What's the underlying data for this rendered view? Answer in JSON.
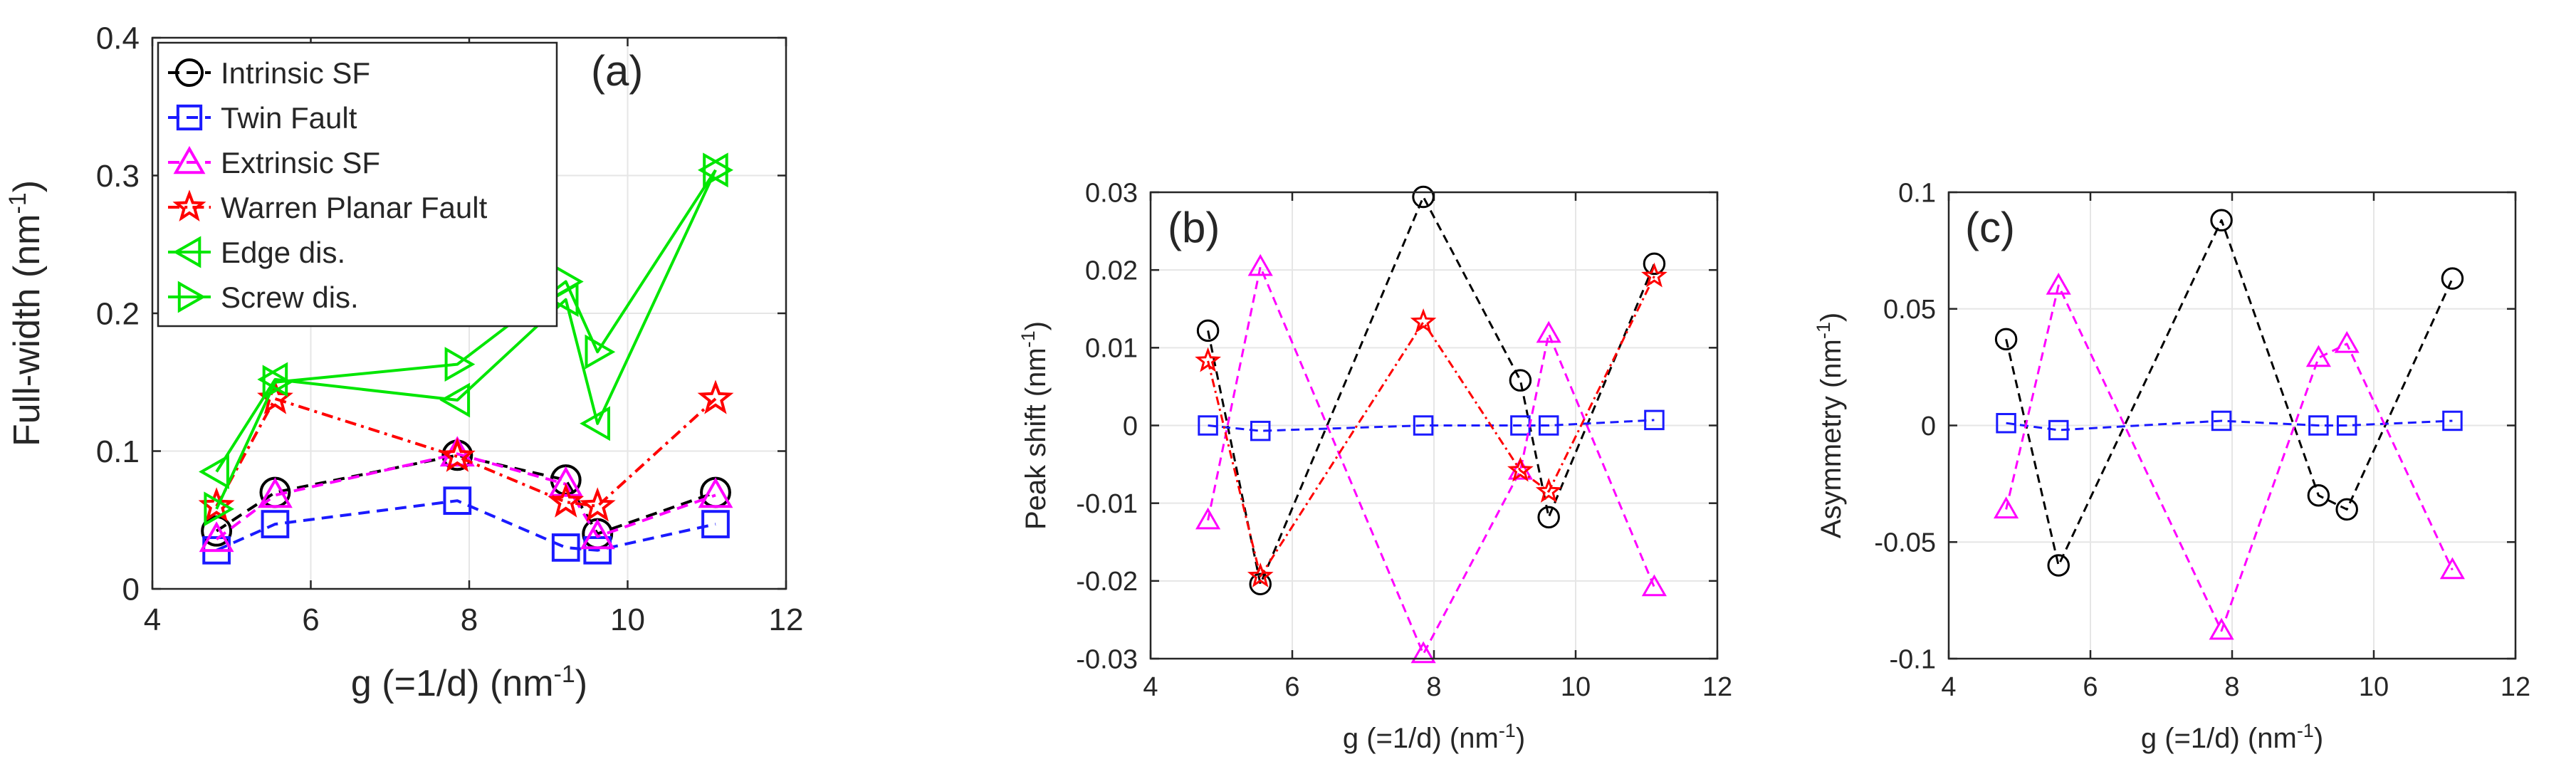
{
  "chart_data": [
    {
      "id": "a",
      "type": "line",
      "panel_label": "(a)",
      "xlabel": "g (=1/d) (nm",
      "xlabel_sup": "-1",
      "xlabel_end": ")",
      "ylabel": "Full-width (nm",
      "ylabel_sup": "-1",
      "ylabel_end": ")",
      "xlim": [
        4,
        12
      ],
      "ylim": [
        0,
        0.4
      ],
      "xticks": [
        4,
        6,
        8,
        10,
        12
      ],
      "yticks": [
        0,
        0.1,
        0.2,
        0.3,
        0.4
      ],
      "xtick_labels": [
        "4",
        "6",
        "8",
        "10",
        "12"
      ],
      "ytick_labels": [
        "0",
        "0.1",
        "0.2",
        "0.3",
        "0.4"
      ],
      "grid": true,
      "legend_position": "top-left",
      "series": [
        {
          "name": "Intrinsic SF",
          "color": "#000000",
          "dash": "dashed",
          "marker": "circle",
          "x": [
            4.81,
            5.55,
            7.85,
            9.22,
            9.62,
            11.11
          ],
          "y": [
            0.042,
            0.07,
            0.097,
            0.079,
            0.04,
            0.07
          ]
        },
        {
          "name": "Twin Fault",
          "color": "#1a1aff",
          "dash": "dashed",
          "marker": "square",
          "x": [
            4.81,
            5.55,
            7.85,
            9.22,
            9.62,
            11.11
          ],
          "y": [
            0.028,
            0.047,
            0.064,
            0.03,
            0.028,
            0.047
          ]
        },
        {
          "name": "Extrinsic SF",
          "color": "#ff00ff",
          "dash": "dashed",
          "marker": "triangle-up",
          "x": [
            4.81,
            5.55,
            7.85,
            9.22,
            9.62,
            11.11
          ],
          "y": [
            0.036,
            0.068,
            0.098,
            0.076,
            0.038,
            0.068
          ]
        },
        {
          "name": "Warren Planar Fault",
          "color": "#ff0000",
          "dash": "dashdot",
          "marker": "star",
          "x": [
            4.81,
            5.55,
            7.85,
            9.22,
            9.62,
            11.11
          ],
          "y": [
            0.06,
            0.138,
            0.096,
            0.063,
            0.06,
            0.138
          ]
        },
        {
          "name": "Edge dis.",
          "color": "#00e600",
          "dash": "solid",
          "marker": "triangle-left",
          "x": [
            4.81,
            5.55,
            7.85,
            9.22,
            9.62,
            11.11
          ],
          "y": [
            0.085,
            0.152,
            0.137,
            0.21,
            0.12,
            0.304
          ]
        },
        {
          "name": "Screw dis.",
          "color": "#00e600",
          "dash": "solid",
          "marker": "triangle-right",
          "x": [
            4.81,
            5.55,
            7.85,
            9.22,
            9.62,
            11.11
          ],
          "y": [
            0.058,
            0.15,
            0.163,
            0.223,
            0.172,
            0.304
          ]
        }
      ]
    },
    {
      "id": "b",
      "type": "line",
      "panel_label": "(b)",
      "xlabel": "g (=1/d) (nm",
      "xlabel_sup": "-1",
      "xlabel_end": ")",
      "ylabel": "Peak shift (nm",
      "ylabel_sup": "-1",
      "ylabel_end": ")",
      "xlim": [
        4,
        12
      ],
      "ylim": [
        -0.03,
        0.03
      ],
      "xticks": [
        4,
        6,
        8,
        10,
        12
      ],
      "yticks": [
        -0.03,
        -0.02,
        -0.01,
        0,
        0.01,
        0.02,
        0.03
      ],
      "xtick_labels": [
        "4",
        "6",
        "8",
        "10",
        "12"
      ],
      "ytick_labels": [
        "-0.03",
        "-0.02",
        "-0.01",
        "0",
        "0.01",
        "0.02",
        "0.03"
      ],
      "grid": true,
      "series": [
        {
          "name": "Intrinsic SF",
          "color": "#000000",
          "dash": "dashed",
          "marker": "circle",
          "x": [
            4.81,
            5.55,
            7.85,
            9.22,
            9.62,
            11.11
          ],
          "y": [
            0.0122,
            -0.0204,
            0.0294,
            0.0058,
            -0.0118,
            0.0208
          ]
        },
        {
          "name": "Twin Fault",
          "color": "#1a1aff",
          "dash": "dashed",
          "marker": "square",
          "x": [
            4.81,
            5.55,
            7.85,
            9.22,
            9.62,
            11.11
          ],
          "y": [
            0.0,
            -0.0007,
            0.0,
            0.0,
            0.0,
            0.0007
          ]
        },
        {
          "name": "Extrinsic SF",
          "color": "#ff00ff",
          "dash": "dashed",
          "marker": "triangle-up",
          "x": [
            4.81,
            5.55,
            7.85,
            9.22,
            9.62,
            11.11
          ],
          "y": [
            -0.0122,
            0.0204,
            -0.0294,
            -0.0058,
            0.0118,
            -0.0208
          ]
        },
        {
          "name": "Warren Planar Fault",
          "color": "#ff0000",
          "dash": "dashdot",
          "marker": "star",
          "x": [
            4.81,
            5.55,
            7.85,
            9.22,
            9.62,
            11.11
          ],
          "y": [
            0.0083,
            -0.0194,
            0.0133,
            -0.0058,
            -0.0085,
            0.0192
          ]
        }
      ]
    },
    {
      "id": "c",
      "type": "line",
      "panel_label": "(c)",
      "xlabel": "g (=1/d) (nm",
      "xlabel_sup": "-1",
      "xlabel_end": ")",
      "ylabel": "Asymmetry (nm",
      "ylabel_sup": "-1",
      "ylabel_end": ")",
      "xlim": [
        4,
        12
      ],
      "ylim": [
        -0.1,
        0.1
      ],
      "xticks": [
        4,
        6,
        8,
        10,
        12
      ],
      "yticks": [
        -0.1,
        -0.05,
        0,
        0.05,
        0.1
      ],
      "xtick_labels": [
        "4",
        "6",
        "8",
        "10",
        "12"
      ],
      "ytick_labels": [
        "-0.1",
        "-0.05",
        "0",
        "0.05",
        "0.1"
      ],
      "grid": true,
      "series": [
        {
          "name": "Intrinsic SF",
          "color": "#000000",
          "dash": "dashed",
          "marker": "circle",
          "x": [
            4.81,
            5.55,
            7.85,
            9.22,
            9.62,
            11.11
          ],
          "y": [
            0.037,
            -0.06,
            0.088,
            -0.03,
            -0.036,
            0.063
          ]
        },
        {
          "name": "Twin Fault",
          "color": "#1a1aff",
          "dash": "dashed",
          "marker": "square",
          "x": [
            4.81,
            5.55,
            7.85,
            9.22,
            9.62,
            11.11
          ],
          "y": [
            0.001,
            -0.002,
            0.002,
            0.0,
            0.0,
            0.002
          ]
        },
        {
          "name": "Extrinsic SF",
          "color": "#ff00ff",
          "dash": "dashed",
          "marker": "triangle-up",
          "x": [
            4.81,
            5.55,
            7.85,
            9.22,
            9.62,
            11.11
          ],
          "y": [
            -0.036,
            0.06,
            -0.088,
            0.029,
            0.035,
            -0.062
          ]
        }
      ]
    }
  ]
}
